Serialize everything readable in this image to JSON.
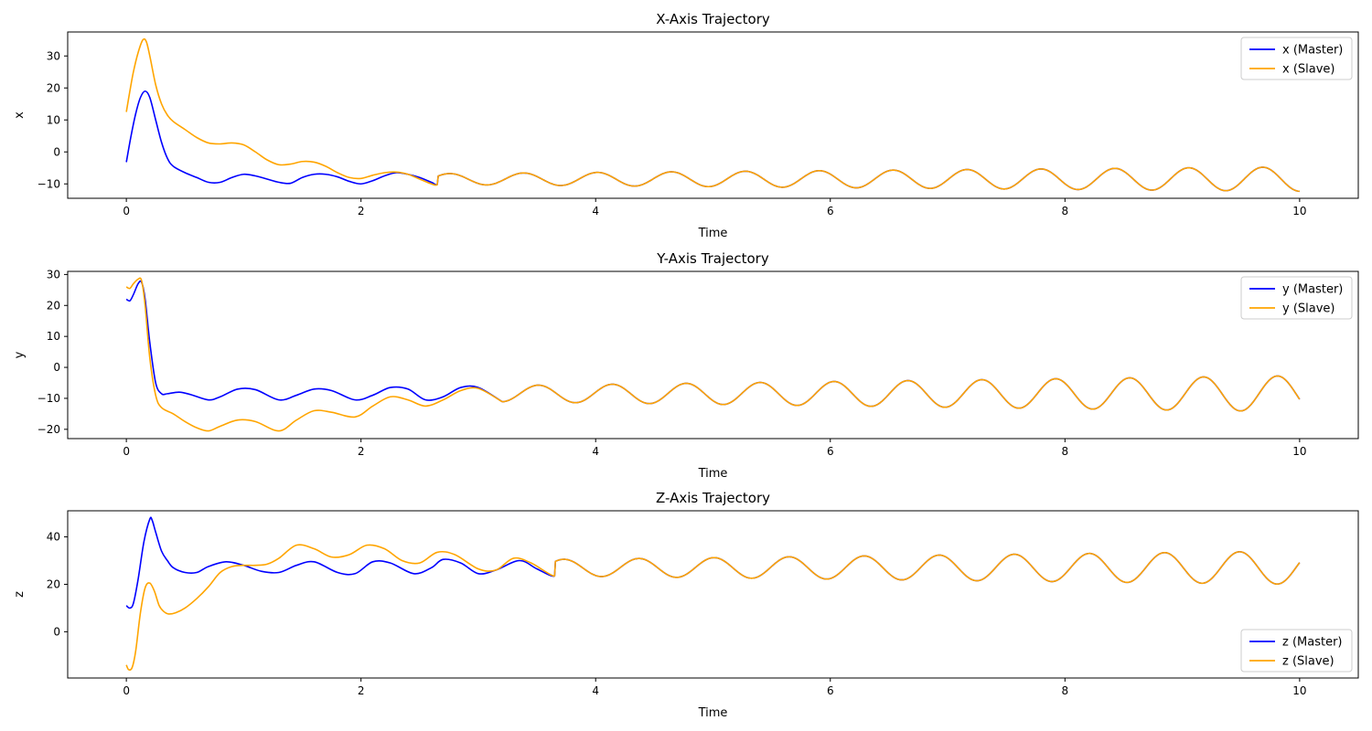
{
  "colors": {
    "master": "#0000ff",
    "slave": "#ffa500"
  },
  "chart_data": [
    {
      "type": "line",
      "title": "X-Axis Trajectory",
      "xlabel": "Time",
      "ylabel": "x",
      "xlim": [
        -0.5,
        10.5
      ],
      "ylim": [
        -14.5,
        37.5
      ],
      "xticks": [
        0,
        2,
        4,
        6,
        8,
        10
      ],
      "yticks": [
        -10,
        0,
        10,
        20,
        30
      ],
      "grid": false,
      "legend_position": "top-right",
      "series": [
        {
          "name": "x (Master)",
          "color": "#0000ff",
          "x": [
            0,
            0.04,
            0.08,
            0.12,
            0.16,
            0.2,
            0.25,
            0.3,
            0.35,
            0.4,
            0.5,
            0.6,
            0.7,
            0.8,
            0.9,
            1.0,
            1.1,
            1.2,
            1.3,
            1.4,
            1.5,
            1.6,
            1.7,
            1.8,
            1.9,
            2.0,
            2.1,
            2.2,
            2.3,
            2.4,
            2.5,
            2.6,
            2.65
          ],
          "y": [
            -3.2,
            5,
            12,
            17,
            19,
            17,
            10,
            3,
            -2,
            -4.5,
            -6.5,
            -8,
            -9.5,
            -9.5,
            -8,
            -7,
            -7.5,
            -8.5,
            -9.5,
            -9.8,
            -8,
            -7,
            -7,
            -7.8,
            -9.2,
            -10,
            -9,
            -7.5,
            -6.5,
            -7,
            -8,
            -9.5,
            -10.2
          ]
        },
        {
          "name": "x (Slave)",
          "color": "#ffa500",
          "x": [
            0,
            0.03,
            0.06,
            0.1,
            0.14,
            0.17,
            0.2,
            0.25,
            0.3,
            0.35,
            0.4,
            0.5,
            0.6,
            0.7,
            0.8,
            0.9,
            1.0,
            1.1,
            1.2,
            1.3,
            1.4,
            1.5,
            1.6,
            1.7,
            1.8,
            1.9,
            2.0,
            2.1,
            2.2,
            2.3,
            2.4,
            2.5,
            2.6,
            2.65
          ],
          "y": [
            12.5,
            19,
            25,
            31,
            35,
            34.5,
            30,
            21,
            15,
            11.5,
            9.5,
            7,
            4.5,
            2.8,
            2.5,
            2.8,
            2.2,
            0,
            -2.5,
            -4,
            -3.8,
            -3,
            -3.2,
            -4.5,
            -6.5,
            -8,
            -8.3,
            -7.3,
            -6.5,
            -6.3,
            -7,
            -8.5,
            -10,
            -10.2
          ]
        }
      ],
      "sync": {
        "t_start": 2.65,
        "t_end": 10,
        "center": -8.5,
        "amp_start": 1.7,
        "amp_end": 3.8,
        "period": 0.63,
        "phase_end": 0.5
      }
    },
    {
      "type": "line",
      "title": "Y-Axis Trajectory",
      "xlabel": "Time",
      "ylabel": "y",
      "xlim": [
        -0.5,
        10.5
      ],
      "ylim": [
        -23,
        31
      ],
      "xticks": [
        0,
        2,
        4,
        6,
        8,
        10
      ],
      "yticks": [
        -20,
        -10,
        0,
        10,
        20,
        30
      ],
      "grid": false,
      "legend_position": "top-right",
      "series": [
        {
          "name": "y (Master)",
          "color": "#0000ff",
          "x": [
            0,
            0.03,
            0.06,
            0.1,
            0.13,
            0.16,
            0.2,
            0.25,
            0.3,
            0.35,
            0.45,
            0.55,
            0.7,
            0.8,
            0.95,
            1.1,
            1.3,
            1.45,
            1.6,
            1.75,
            1.95,
            2.1,
            2.25,
            2.4,
            2.55,
            2.7,
            2.85,
            3.0,
            3.2
          ],
          "y": [
            22,
            21.5,
            23.5,
            27,
            27.5,
            22,
            8,
            -5,
            -8.5,
            -8.5,
            -8,
            -8.8,
            -10.5,
            -9.5,
            -7,
            -7.2,
            -10.5,
            -9,
            -7,
            -7.5,
            -10.5,
            -9,
            -6.5,
            -7,
            -10.5,
            -9.5,
            -6.5,
            -6.5,
            -11
          ]
        },
        {
          "name": "y (Slave)",
          "color": "#ffa500",
          "x": [
            0,
            0.03,
            0.06,
            0.1,
            0.13,
            0.16,
            0.2,
            0.25,
            0.3,
            0.4,
            0.5,
            0.6,
            0.7,
            0.8,
            0.95,
            1.1,
            1.3,
            1.45,
            1.6,
            1.75,
            1.95,
            2.1,
            2.25,
            2.4,
            2.55,
            2.7,
            2.85,
            3.0,
            3.2
          ],
          "y": [
            26,
            25.5,
            27,
            28.5,
            28,
            20,
            3,
            -9,
            -13,
            -15,
            -17.5,
            -19.5,
            -20.5,
            -19,
            -17,
            -17.5,
            -20.5,
            -17,
            -14,
            -14.5,
            -16,
            -12.5,
            -9.5,
            -10.5,
            -12.5,
            -10.5,
            -7.5,
            -6.8,
            -11
          ]
        }
      ],
      "sync": {
        "t_start": 3.2,
        "t_end": 10,
        "center": -8.5,
        "amp_start": 2.6,
        "amp_end": 5.8,
        "period": 0.63,
        "phase_end": 0.3
      }
    },
    {
      "type": "line",
      "title": "Z-Axis Trajectory",
      "xlabel": "Time",
      "ylabel": "z",
      "xlim": [
        -0.5,
        10.5
      ],
      "ylim": [
        -19.5,
        51
      ],
      "xticks": [
        0,
        2,
        4,
        6,
        8,
        10
      ],
      "yticks": [
        0,
        20,
        40
      ],
      "grid": false,
      "legend_position": "bottom-right",
      "series": [
        {
          "name": "z (Master)",
          "color": "#0000ff",
          "x": [
            0,
            0.03,
            0.06,
            0.1,
            0.15,
            0.2,
            0.22,
            0.25,
            0.3,
            0.35,
            0.4,
            0.5,
            0.6,
            0.7,
            0.85,
            1.0,
            1.15,
            1.3,
            1.45,
            1.6,
            1.8,
            1.95,
            2.1,
            2.25,
            2.45,
            2.6,
            2.7,
            2.85,
            3.0,
            3.15,
            3.35,
            3.5,
            3.65
          ],
          "y": [
            11,
            10,
            12,
            22,
            38,
            47.5,
            47,
            42,
            34,
            30,
            27,
            25,
            25,
            27.5,
            29.5,
            28,
            25.5,
            25,
            28,
            29.5,
            25,
            24.5,
            29.5,
            29,
            24.5,
            27,
            30.5,
            29,
            24.5,
            26,
            30,
            26.5,
            23.5
          ]
        },
        {
          "name": "z (Slave)",
          "color": "#ffa500",
          "x": [
            0,
            0.02,
            0.05,
            0.08,
            0.12,
            0.16,
            0.2,
            0.24,
            0.28,
            0.32,
            0.36,
            0.42,
            0.5,
            0.6,
            0.7,
            0.8,
            0.9,
            1.0,
            1.1,
            1.2,
            1.3,
            1.45,
            1.6,
            1.75,
            1.9,
            2.05,
            2.2,
            2.35,
            2.5,
            2.65,
            2.8,
            3.0,
            3.15,
            3.3,
            3.45,
            3.65
          ],
          "y": [
            -14,
            -16,
            -15,
            -8,
            8,
            18.5,
            20.5,
            17,
            11,
            8.5,
            7.5,
            8,
            10,
            14,
            19,
            25,
            27.5,
            28,
            28,
            28.5,
            31,
            36.5,
            35,
            31.5,
            32.5,
            36.5,
            35,
            30,
            29,
            33.5,
            32.5,
            26.5,
            26,
            31,
            29,
            23.5
          ]
        }
      ],
      "sync": {
        "t_start": 3.65,
        "t_end": 10,
        "center": 27,
        "amp_start": 3.5,
        "amp_end": 7.0,
        "period": 0.64,
        "phase_end": 0.8
      }
    }
  ]
}
